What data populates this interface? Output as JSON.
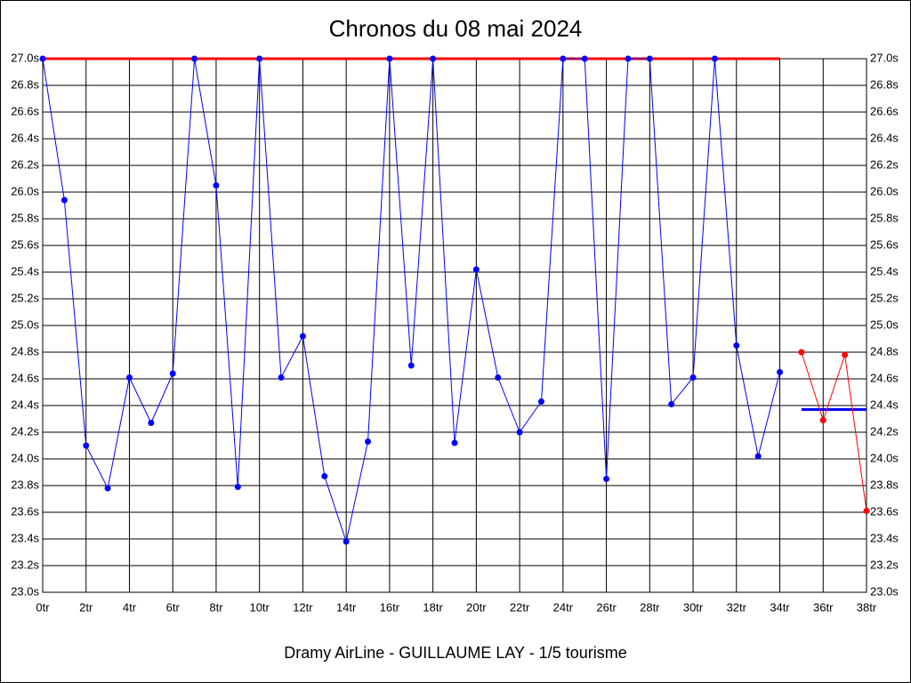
{
  "chart_data": {
    "type": "line",
    "title": "Chronos du 08 mai 2024",
    "subtitle": "Dramy AirLine - GUILLAUME LAY - 1/5 tourisme",
    "xlim": [
      0,
      38
    ],
    "ylim": [
      23.0,
      27.0
    ],
    "grid": true,
    "xticks": [
      {
        "value": 0,
        "label": "0tr"
      },
      {
        "value": 2,
        "label": "2tr"
      },
      {
        "value": 4,
        "label": "4tr"
      },
      {
        "value": 6,
        "label": "6tr"
      },
      {
        "value": 8,
        "label": "8tr"
      },
      {
        "value": 10,
        "label": "10tr"
      },
      {
        "value": 12,
        "label": "12tr"
      },
      {
        "value": 14,
        "label": "14tr"
      },
      {
        "value": 16,
        "label": "16tr"
      },
      {
        "value": 18,
        "label": "18tr"
      },
      {
        "value": 20,
        "label": "20tr"
      },
      {
        "value": 22,
        "label": "22tr"
      },
      {
        "value": 24,
        "label": "24tr"
      },
      {
        "value": 26,
        "label": "26tr"
      },
      {
        "value": 28,
        "label": "28tr"
      },
      {
        "value": 30,
        "label": "30tr"
      },
      {
        "value": 32,
        "label": "32tr"
      },
      {
        "value": 34,
        "label": "34tr"
      },
      {
        "value": 36,
        "label": "36tr"
      },
      {
        "value": 38,
        "label": "38tr"
      }
    ],
    "yticks": [
      {
        "value": 23.0,
        "label": "23.0s"
      },
      {
        "value": 23.2,
        "label": "23.2s"
      },
      {
        "value": 23.4,
        "label": "23.4s"
      },
      {
        "value": 23.6,
        "label": "23.6s"
      },
      {
        "value": 23.8,
        "label": "23.8s"
      },
      {
        "value": 24.0,
        "label": "24.0s"
      },
      {
        "value": 24.2,
        "label": "24.2s"
      },
      {
        "value": 24.4,
        "label": "24.4s"
      },
      {
        "value": 24.6,
        "label": "24.6s"
      },
      {
        "value": 24.8,
        "label": "24.8s"
      },
      {
        "value": 25.0,
        "label": "25.0s"
      },
      {
        "value": 25.2,
        "label": "25.2s"
      },
      {
        "value": 25.4,
        "label": "25.4s"
      },
      {
        "value": 25.6,
        "label": "25.6s"
      },
      {
        "value": 25.8,
        "label": "25.8s"
      },
      {
        "value": 26.0,
        "label": "26.0s"
      },
      {
        "value": 26.2,
        "label": "26.2s"
      },
      {
        "value": 26.4,
        "label": "26.4s"
      },
      {
        "value": 26.6,
        "label": "26.6s"
      },
      {
        "value": 26.8,
        "label": "26.8s"
      },
      {
        "value": 27.0,
        "label": "27.0s"
      }
    ],
    "series": [
      {
        "color": "#0000ff",
        "x": [
          0,
          1,
          2,
          3,
          4,
          5,
          6,
          7,
          8,
          9,
          10,
          11,
          12,
          13,
          14,
          15,
          16,
          17,
          18,
          19,
          20,
          21,
          22,
          23,
          24,
          25,
          26,
          27,
          28,
          29,
          30,
          31,
          32,
          33,
          34
        ],
        "values": [
          27.0,
          25.94,
          24.1,
          23.78,
          24.61,
          24.27,
          24.64,
          27.0,
          26.05,
          23.79,
          27.0,
          24.61,
          24.92,
          23.87,
          23.38,
          24.13,
          27.0,
          24.7,
          27.0,
          24.12,
          25.42,
          24.61,
          24.2,
          24.43,
          27.0,
          27.0,
          23.85,
          27.0,
          27.0,
          24.41,
          24.61,
          27.0,
          24.85,
          24.02,
          24.65
        ]
      },
      {
        "color": "#ff0000",
        "x": [
          35,
          36,
          37,
          38
        ],
        "values": [
          24.8,
          24.29,
          24.78,
          23.61
        ]
      }
    ],
    "reference_lines": [
      {
        "value": 27.0,
        "from": 0,
        "to": 34,
        "color": "#ff0000"
      },
      {
        "value": 24.37,
        "from": 35,
        "to": 38,
        "color": "#0000ff"
      }
    ]
  }
}
